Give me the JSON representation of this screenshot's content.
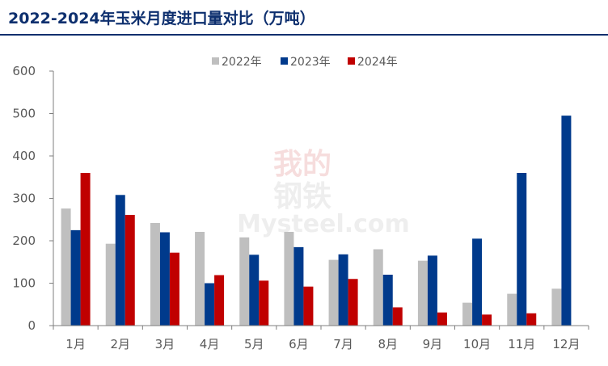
{
  "chart_data": {
    "type": "bar",
    "title": "2022-2024年玉米月度进口量对比（万吨）",
    "categories": [
      "1月",
      "2月",
      "3月",
      "4月",
      "5月",
      "6月",
      "7月",
      "8月",
      "9月",
      "10月",
      "11月",
      "12月"
    ],
    "series": [
      {
        "name": "2022年",
        "color": "#bfbfbf",
        "values": [
          276,
          193,
          242,
          221,
          208,
          221,
          155,
          180,
          153,
          54,
          75,
          87
        ]
      },
      {
        "name": "2023年",
        "color": "#003a8c",
        "values": [
          225,
          308,
          220,
          100,
          167,
          185,
          168,
          120,
          165,
          205,
          360,
          495
        ]
      },
      {
        "name": "2024年",
        "color": "#c00000",
        "values": [
          360,
          261,
          172,
          119,
          106,
          92,
          110,
          43,
          31,
          26,
          29,
          null
        ]
      }
    ],
    "ylim": [
      0,
      600
    ],
    "yticks": [
      0,
      100,
      200,
      300,
      400,
      500,
      600
    ],
    "legend_position": "top-center",
    "grid": false
  },
  "watermark": {
    "line1": "我的",
    "line2": "钢铁",
    "line3": "Mysteel.com"
  }
}
